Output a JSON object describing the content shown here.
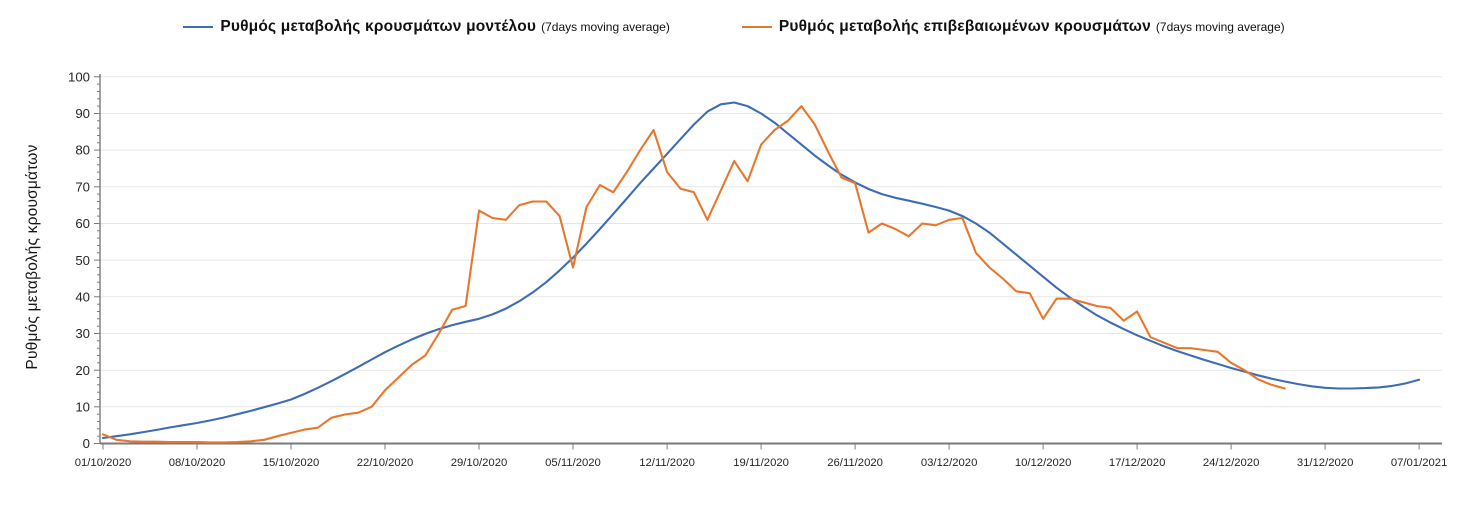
{
  "legend": {
    "items": [
      {
        "label": "Ρυθμός μεταβολής κρουσμάτων μοντέλου",
        "suffix": "(7days moving average)",
        "color": "#3e6cb5"
      },
      {
        "label": "Ρυθμός μεταβολής επιβεβαιωμένων κρουσμάτων",
        "suffix": "(7days moving average)",
        "color": "#e8772e"
      }
    ]
  },
  "y_axis": {
    "title": "Ρυθμός μεταβολής κρουσμάτων",
    "min": 0,
    "max": 100,
    "major_step": 10,
    "minor_step": 2,
    "tick_labels": [
      "0",
      "10",
      "20",
      "30",
      "40",
      "50",
      "60",
      "70",
      "80",
      "90",
      "100"
    ]
  },
  "x_axis": {
    "days_per_tick": 7,
    "tick_labels": [
      "01/10/2020",
      "08/10/2020",
      "15/10/2020",
      "22/10/2020",
      "29/10/2020",
      "05/11/2020",
      "12/11/2020",
      "19/11/2020",
      "26/11/2020",
      "03/12/2020",
      "10/12/2020",
      "17/12/2020",
      "24/12/2020",
      "31/12/2020",
      "07/01/2021"
    ]
  },
  "colors": {
    "model_line": "#3e6cb5",
    "confirmed_line": "#e8772e",
    "gridline": "#e7e7e7",
    "axis": "#7a7a7a",
    "tick_text": "#262626"
  },
  "chart_data": {
    "type": "line",
    "title": "",
    "xlabel": "",
    "ylabel": "Ρυθμός μεταβολής κρουσμάτων",
    "ylim": [
      0,
      100
    ],
    "grid": true,
    "legend_position": "top",
    "x_unit": "days since 01/10/2020 (ticks every 7 days)",
    "x_tick_labels": [
      "01/10/2020",
      "08/10/2020",
      "15/10/2020",
      "22/10/2020",
      "29/10/2020",
      "05/11/2020",
      "12/11/2020",
      "19/11/2020",
      "26/11/2020",
      "03/12/2020",
      "10/12/2020",
      "17/12/2020",
      "24/12/2020",
      "31/12/2020",
      "07/01/2021"
    ],
    "series": [
      {
        "name": "Ρυθμός μεταβολής κρουσμάτων μοντέλου (7days moving average)",
        "color": "#3e6cb5",
        "start_day": 0,
        "values": [
          1.5,
          2,
          2.5,
          3.1,
          3.7,
          4.4,
          5,
          5.6,
          6.3,
          7.1,
          8,
          8.9,
          9.9,
          10.9,
          12,
          13.5,
          15.2,
          17,
          18.9,
          20.9,
          22.9,
          24.9,
          26.7,
          28.4,
          29.9,
          31.2,
          32.3,
          33.2,
          34,
          35.2,
          36.8,
          38.8,
          41.2,
          44,
          47.2,
          50.7,
          54.5,
          58.5,
          62.6,
          66.8,
          71,
          75,
          79,
          83,
          87,
          90.5,
          92.5,
          93,
          92,
          90,
          87.5,
          84.5,
          81.5,
          78.5,
          75.8,
          73.3,
          71.2,
          69.4,
          68,
          67,
          66.2,
          65.4,
          64.5,
          63.5,
          62,
          60,
          57.5,
          54.5,
          51.5,
          48.5,
          45.5,
          42.5,
          39.8,
          37.3,
          35,
          33,
          31.2,
          29.5,
          28,
          26.5,
          25.2,
          24,
          22.8,
          21.7,
          20.6,
          19.6,
          18.6,
          17.7,
          16.9,
          16.2,
          15.6,
          15.2,
          15,
          15,
          15.1,
          15.3,
          15.7,
          16.4,
          17.4
        ]
      },
      {
        "name": "Ρυθμός μεταβολής επιβεβαιωμένων κρουσμάτων (7days moving average)",
        "color": "#e8772e",
        "start_day": 0,
        "values": [
          2.5,
          1,
          0.6,
          0.5,
          0.5,
          0.4,
          0.4,
          0.4,
          0.3,
          0.3,
          0.4,
          0.6,
          1.0,
          2.0,
          2.9,
          3.8,
          4.3,
          7.0,
          7.9,
          8.4,
          10,
          14.5,
          18,
          21.5,
          24,
          30,
          36.5,
          37.5,
          63.5,
          61.5,
          61,
          65,
          66,
          66,
          62,
          48,
          64.5,
          70.5,
          68.5,
          74,
          80,
          85.5,
          74,
          69.5,
          68.5,
          61,
          69,
          77,
          71.5,
          81.5,
          85.5,
          88,
          92,
          87,
          79.5,
          72.5,
          71,
          57.5,
          60,
          58.5,
          56.5,
          60,
          59.5,
          61,
          61.5,
          52,
          48,
          45,
          41.5,
          41,
          34,
          39.5,
          39.5,
          38.5,
          37.5,
          37,
          33.5,
          36,
          29,
          27.5,
          26,
          26,
          25.5,
          25,
          22,
          20,
          17.5,
          16,
          15
        ]
      }
    ]
  }
}
